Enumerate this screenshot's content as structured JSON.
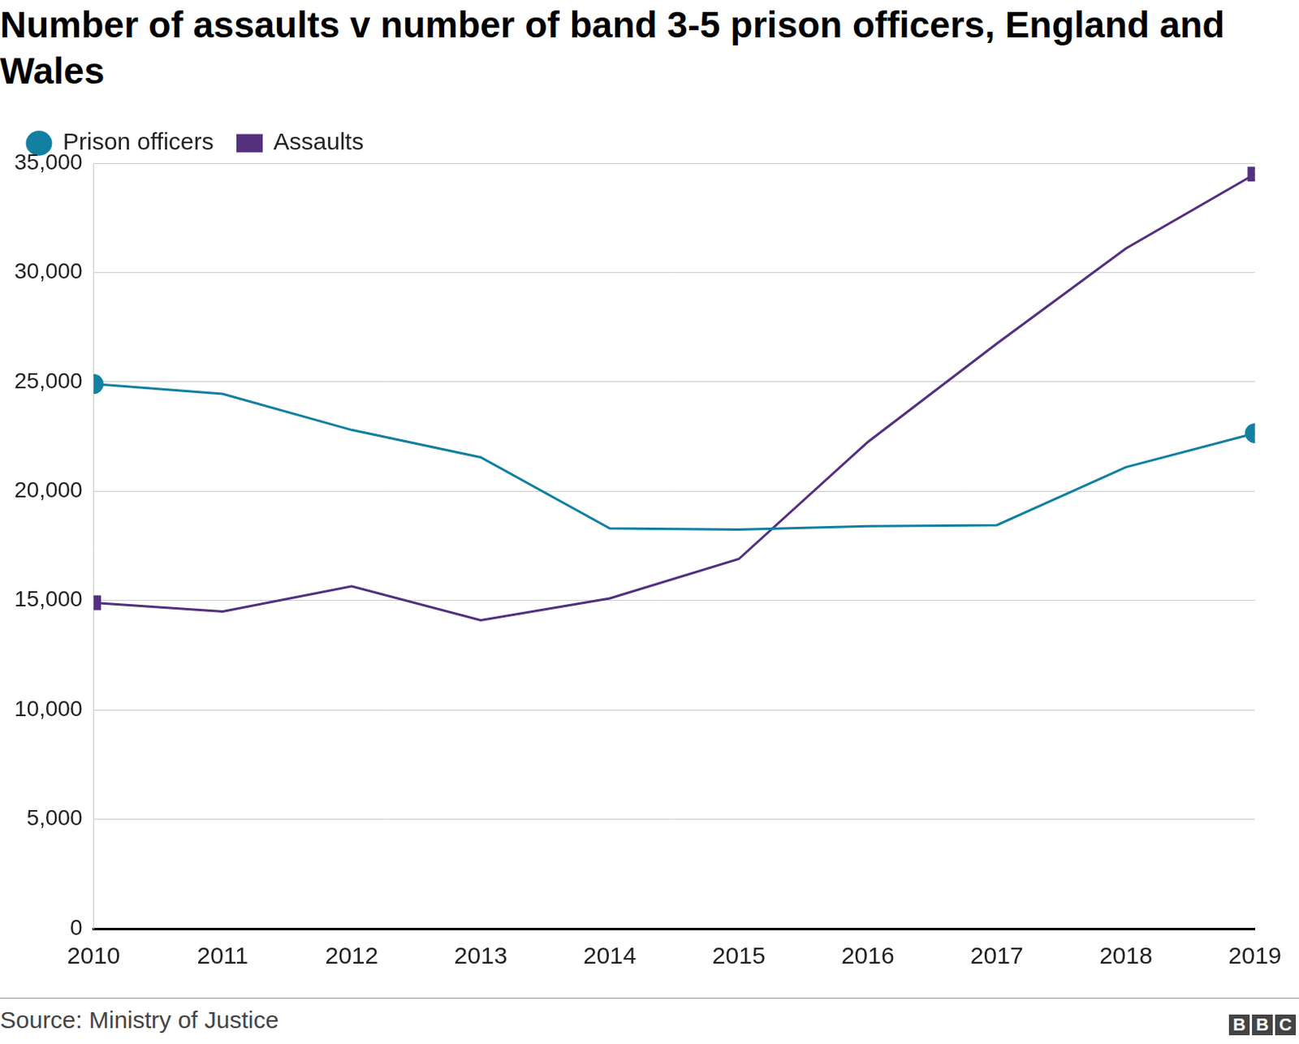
{
  "chart_data": {
    "type": "line",
    "title": "Number of assaults v number of band 3-5 prison officers, England and Wales",
    "source": "Source: Ministry of Justice",
    "logo": "BBC",
    "categories": [
      "2010",
      "2011",
      "2012",
      "2013",
      "2014",
      "2015",
      "2016",
      "2017",
      "2018",
      "2019"
    ],
    "series": [
      {
        "name": "Prison officers",
        "color": "#1380a1",
        "marker": "circle",
        "values": [
          24900,
          24450,
          22800,
          21550,
          18300,
          18250,
          18400,
          18450,
          21100,
          22650
        ]
      },
      {
        "name": "Assaults",
        "color": "#54307f",
        "marker": "square",
        "values": [
          14900,
          14500,
          15650,
          14100,
          15100,
          16900,
          22250,
          26750,
          31100,
          34500
        ]
      }
    ],
    "ylim": [
      0,
      35000
    ],
    "yticks": [
      0,
      {
        "value": 5000,
        "label": "5,000"
      },
      {
        "value": 10000,
        "label": "10,000"
      },
      {
        "value": 15000,
        "label": "15,000"
      },
      {
        "value": 20000,
        "label": "20,000"
      },
      {
        "value": 25000,
        "label": "25,000"
      },
      {
        "value": 30000,
        "label": "30,000"
      },
      {
        "value": 35000,
        "label": "35,000"
      }
    ],
    "grid": true,
    "legend": "top-left"
  }
}
